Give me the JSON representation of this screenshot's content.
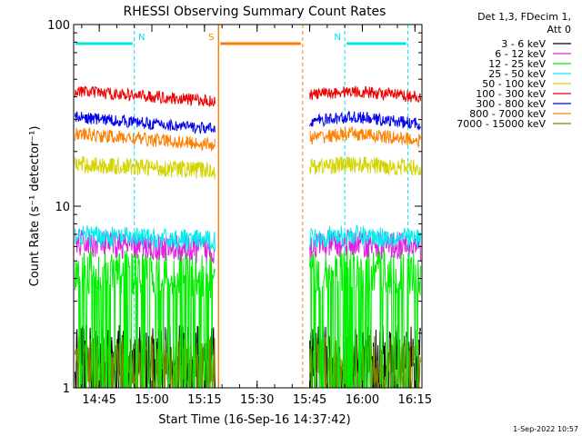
{
  "chart_data": {
    "type": "line",
    "title": "RHESSI Observing Summary Count Rates",
    "xlabel": "Start Time (16-Sep-16 14:37:42)",
    "ylabel": "Count Rate (s⁻¹ detector⁻¹)",
    "y_scale": "log",
    "ylim": [
      1,
      100
    ],
    "xlim": [
      "14:37:42",
      "16:17:00"
    ],
    "x_ticks": [
      "14:45",
      "15:00",
      "15:15",
      "15:30",
      "15:45",
      "16:00",
      "16:15"
    ],
    "y_ticks": [
      "1",
      "10",
      "100"
    ],
    "legend_position": "right",
    "legend_header": [
      "Det 1,3, FDecim 1,",
      "Att 0"
    ],
    "timestamp": "1-Sep-2022 10:57",
    "gaps": [
      [
        "15:18",
        "15:45"
      ]
    ],
    "flags": [
      {
        "label": "N",
        "color": "#00e5e5",
        "from": "14:37:42",
        "to": "14:55",
        "type": "night"
      },
      {
        "label": "N",
        "color": "#00e5e5",
        "from": "15:55",
        "to": "16:13",
        "type": "night"
      },
      {
        "label": "S",
        "color": "#ff7f00",
        "from": "15:19",
        "to": "15:43",
        "type": "saa"
      }
    ],
    "series": [
      {
        "name": "3 - 6 keV",
        "color": "#000000",
        "start": 1.6,
        "end": 1.6,
        "noise": 0.15,
        "drop": true
      },
      {
        "name": "6 - 12 keV",
        "color": "#e020e0",
        "start": 6.3,
        "end": 5.4,
        "noise": 0.08,
        "drop": false
      },
      {
        "name": "12 - 25 keV",
        "color": "#00ee00",
        "start": 4.5,
        "end": 3.9,
        "noise": 0.14,
        "drop": true
      },
      {
        "name": "25 - 50 keV",
        "color": "#00eeee",
        "start": 6.9,
        "end": 6.2,
        "noise": 0.06,
        "drop": false
      },
      {
        "name": "50 - 100 keV",
        "color": "#d4d400",
        "start": 17,
        "end": 15,
        "noise": 0.05,
        "drop": false
      },
      {
        "name": "100 - 300 keV",
        "color": "#ee0000",
        "start": 43,
        "end": 35,
        "noise": 0.035,
        "drop": false
      },
      {
        "name": "300 - 800 keV",
        "color": "#0000ee",
        "start": 31,
        "end": 24,
        "noise": 0.035,
        "drop": false
      },
      {
        "name": "800 - 7000 keV",
        "color": "#ff8000",
        "start": 25,
        "end": 20,
        "noise": 0.04,
        "drop": false
      },
      {
        "name": "7000 - 15000 keV",
        "color": "#808000",
        "start": 1.4,
        "end": 1.4,
        "noise": 0.15,
        "drop": true
      }
    ]
  }
}
